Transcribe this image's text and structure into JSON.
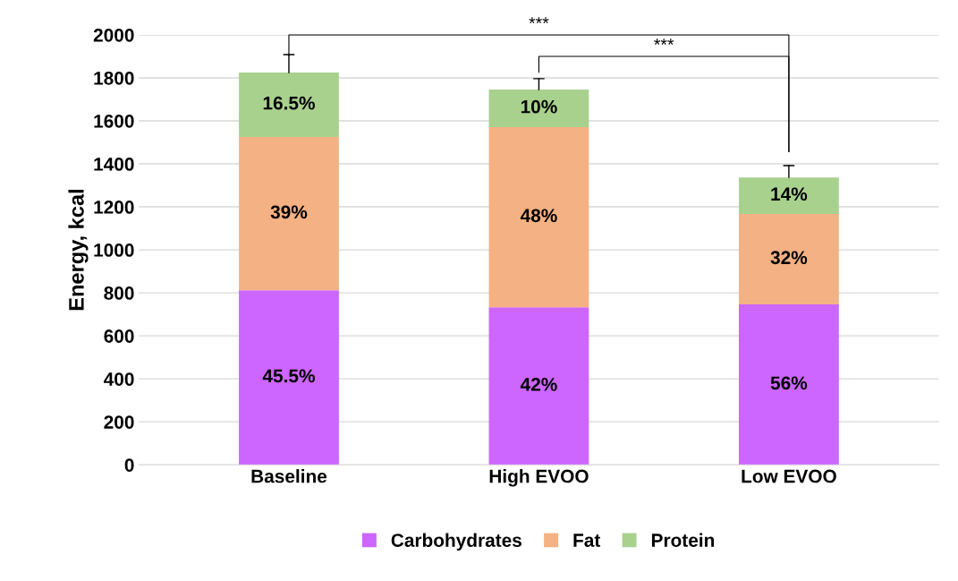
{
  "chart_data": {
    "type": "bar",
    "stacked": true,
    "ylabel": "Energy, kcal",
    "categories": [
      "Baseline",
      "High EVOO",
      "Low EVOO"
    ],
    "series": [
      {
        "name": "Carbohydrates",
        "color": "#cc66ff",
        "values": [
          812,
          733,
          746
        ]
      },
      {
        "name": "Fat",
        "color": "#f4b183",
        "values": [
          713,
          838,
          421
        ]
      },
      {
        "name": "Protein",
        "color": "#a9d18e",
        "values": [
          300,
          175,
          170
        ],
        "errors": [
          [
            1825,
            1908
          ],
          [
            1746,
            1796
          ],
          [
            1337,
            1392
          ]
        ]
      }
    ],
    "ylim": [
      0,
      2000
    ],
    "yticks": [
      0,
      200,
      400,
      600,
      800,
      1000,
      1200,
      1400,
      1600,
      1800,
      2000
    ],
    "grid": "y",
    "legend": "bottom",
    "annotations": [
      "***",
      "***",
      "45.5%",
      "42%",
      "56%",
      "39%",
      "48%",
      "32%",
      "16.5%",
      "10%",
      "14%"
    ]
  }
}
